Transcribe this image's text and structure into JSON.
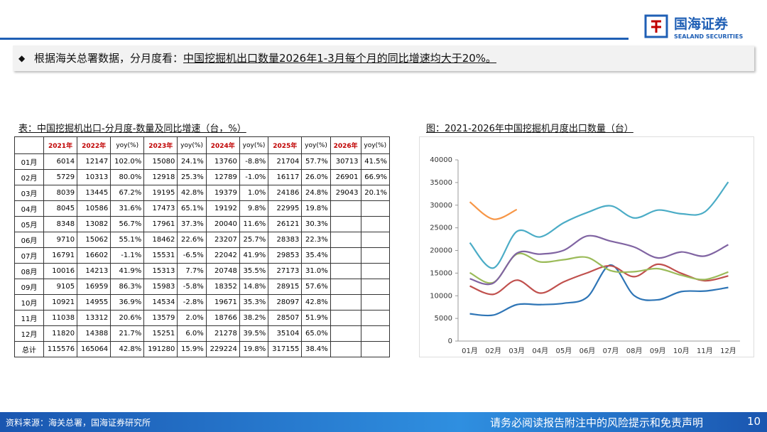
{
  "header": {
    "logo_text": "国海证券",
    "logo_sub": "SEALAND SECURITIES"
  },
  "bullet": {
    "lead": "根据海关总署数据，分月度看：",
    "highlight": "中国挖掘机出口数量2026年1-3月每个月的同比增速均大于20%。"
  },
  "table": {
    "title": "表：中国挖掘机出口-分月度-数量及同比增速（台，%）",
    "header": [
      "2021年",
      "2022年",
      "yoy(%)",
      "2023年",
      "yoy(%)",
      "2024年",
      "yoy(%)",
      "2025年",
      "yoy(%)",
      "2026年",
      "yoy(%)"
    ],
    "rows": [
      [
        "01月",
        "6014",
        "12147",
        "102.0%",
        "15080",
        "24.1%",
        "13760",
        "-8.8%",
        "21704",
        "57.7%",
        "30713",
        "41.5%"
      ],
      [
        "02月",
        "5729",
        "10313",
        "80.0%",
        "12918",
        "25.3%",
        "12789",
        "-1.0%",
        "16117",
        "26.0%",
        "26901",
        "66.9%"
      ],
      [
        "03月",
        "8039",
        "13445",
        "67.2%",
        "19195",
        "42.8%",
        "19379",
        "1.0%",
        "24186",
        "24.8%",
        "29043",
        "20.1%"
      ],
      [
        "04月",
        "8045",
        "10586",
        "31.6%",
        "17473",
        "65.1%",
        "19192",
        "9.8%",
        "22995",
        "19.8%"
      ],
      [
        "05月",
        "8348",
        "13082",
        "56.7%",
        "17961",
        "37.3%",
        "20040",
        "11.6%",
        "26121",
        "30.3%"
      ],
      [
        "06月",
        "9710",
        "15062",
        "55.1%",
        "18462",
        "22.6%",
        "23207",
        "25.7%",
        "28383",
        "22.3%"
      ],
      [
        "07月",
        "16791",
        "16602",
        "-1.1%",
        "15531",
        "-6.5%",
        "22042",
        "41.9%",
        "29853",
        "35.4%"
      ],
      [
        "08月",
        "10016",
        "14213",
        "41.9%",
        "15313",
        "7.7%",
        "20748",
        "35.5%",
        "27173",
        "31.0%"
      ],
      [
        "09月",
        "9105",
        "16959",
        "86.3%",
        "15983",
        "-5.8%",
        "18352",
        "14.8%",
        "28915",
        "57.6%"
      ],
      [
        "10月",
        "10921",
        "14955",
        "36.9%",
        "14534",
        "-2.8%",
        "19671",
        "35.3%",
        "28097",
        "42.8%"
      ],
      [
        "11月",
        "11038",
        "13312",
        "20.6%",
        "13579",
        "2.0%",
        "18766",
        "38.2%",
        "28507",
        "51.9%"
      ],
      [
        "12月",
        "11820",
        "14388",
        "21.7%",
        "15251",
        "6.0%",
        "21278",
        "39.5%",
        "35104",
        "65.0%"
      ],
      [
        "总计",
        "115576",
        "165064",
        "42.8%",
        "191280",
        "15.9%",
        "229224",
        "19.8%",
        "317155",
        "38.4%"
      ]
    ]
  },
  "chart_data": {
    "type": "line",
    "title": "图：2021-2026年中国挖掘机月度出口数量（台）",
    "categories": [
      "01月",
      "02月",
      "03月",
      "04月",
      "05月",
      "06月",
      "07月",
      "08月",
      "09月",
      "10月",
      "11月",
      "12月"
    ],
    "ylim": [
      0,
      40000
    ],
    "yticks": [
      0,
      5000,
      10000,
      15000,
      20000,
      25000,
      30000,
      35000,
      40000
    ],
    "series": [
      {
        "color": "#2e75b6",
        "values": [
          6014,
          5729,
          8039,
          8045,
          8348,
          9710,
          16791,
          10016,
          9105,
          10921,
          11038,
          11820
        ]
      },
      {
        "color": "#c0504d",
        "values": [
          12147,
          10313,
          13445,
          10586,
          13082,
          15062,
          16602,
          14213,
          16959,
          14955,
          13312,
          14388
        ]
      },
      {
        "color": "#9bbb59",
        "values": [
          15080,
          12918,
          19195,
          17473,
          17961,
          18462,
          15531,
          15313,
          15983,
          14534,
          13579,
          15251
        ]
      },
      {
        "color": "#8064a2",
        "values": [
          13760,
          12789,
          19379,
          19192,
          20040,
          23207,
          22042,
          20748,
          18352,
          19671,
          18766,
          21278
        ]
      },
      {
        "color": "#4bacc6",
        "values": [
          21704,
          16117,
          24186,
          22995,
          26121,
          28383,
          29853,
          27173,
          28915,
          28097,
          28507,
          35104
        ]
      },
      {
        "color": "#f79646",
        "values": [
          30713,
          26901,
          29043,
          null,
          null,
          null,
          null,
          null,
          null,
          null,
          null,
          null
        ]
      }
    ]
  },
  "footer": {
    "source": "资料来源：海关总署，国海证券研究所",
    "disclaimer": "请务必阅读报告附注中的风险提示和免责声明",
    "page": "10"
  }
}
